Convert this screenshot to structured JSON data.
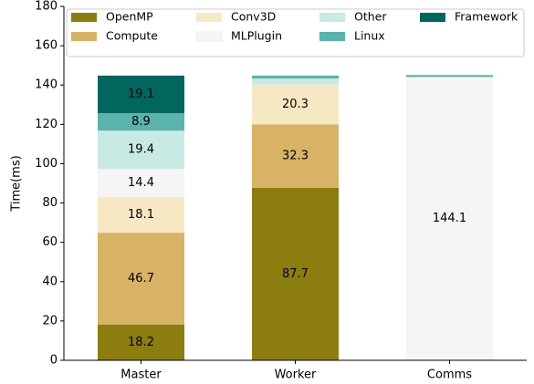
{
  "chart_data": {
    "type": "stacked_bar",
    "categories": [
      "Master",
      "Worker",
      "Comms"
    ],
    "series": [
      {
        "name": "OpenMP",
        "color": "#8c7d0f",
        "values": [
          18.2,
          87.7,
          0
        ]
      },
      {
        "name": "Compute",
        "color": "#d8b365",
        "values": [
          46.7,
          32.3,
          0
        ]
      },
      {
        "name": "Conv3D",
        "color": "#f6e8c3",
        "values": [
          18.1,
          20.3,
          0
        ]
      },
      {
        "name": "MLPlugin",
        "color": "#f5f5f5",
        "values": [
          14.4,
          0,
          144.1
        ]
      },
      {
        "name": "Other",
        "color": "#c7eae5",
        "values": [
          19.4,
          3,
          0
        ]
      },
      {
        "name": "Linux",
        "color": "#5ab4ac",
        "values": [
          8.9,
          1.5,
          1
        ]
      },
      {
        "name": "Framework",
        "color": "#01665e",
        "values": [
          19.1,
          0,
          0
        ]
      }
    ],
    "y_label": "Time(ms)",
    "ylim": [
      0,
      180
    ],
    "yticks": [
      0,
      20,
      40,
      60,
      80,
      100,
      120,
      140,
      160,
      180
    ],
    "legend": "upper"
  }
}
